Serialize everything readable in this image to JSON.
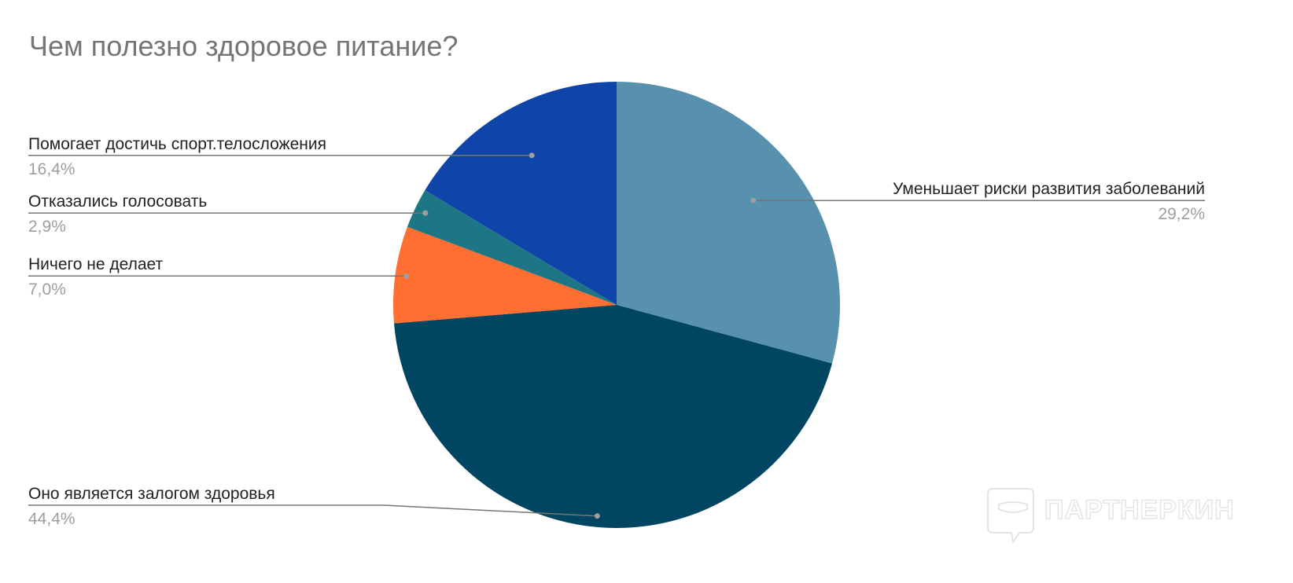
{
  "chart_data": {
    "type": "pie",
    "title": "Чем полезно здоровое питание?",
    "slices": [
      {
        "label": "Уменьшает риски развития заболеваний",
        "value": 29.2,
        "percent_label": "29,2%",
        "color": "#5891ad"
      },
      {
        "label": "Оно является залогом здоровья",
        "value": 44.4,
        "percent_label": "44,4%",
        "color": "#004561"
      },
      {
        "label": "Ничего не делает",
        "value": 7.0,
        "percent_label": "7,0%",
        "color": "#ff6f31"
      },
      {
        "label": "Отказались голосовать",
        "value": 2.9,
        "percent_label": "2,9%",
        "color": "#1c7685"
      },
      {
        "label": "Помогает достичь спорт.телосложения",
        "value": 16.4,
        "percent_label": "16,4%",
        "color": "#0f45a8"
      }
    ],
    "legend": "none",
    "data_labels": "leader-lines"
  },
  "watermark": {
    "text": "ПАРТНЕРКИН"
  }
}
